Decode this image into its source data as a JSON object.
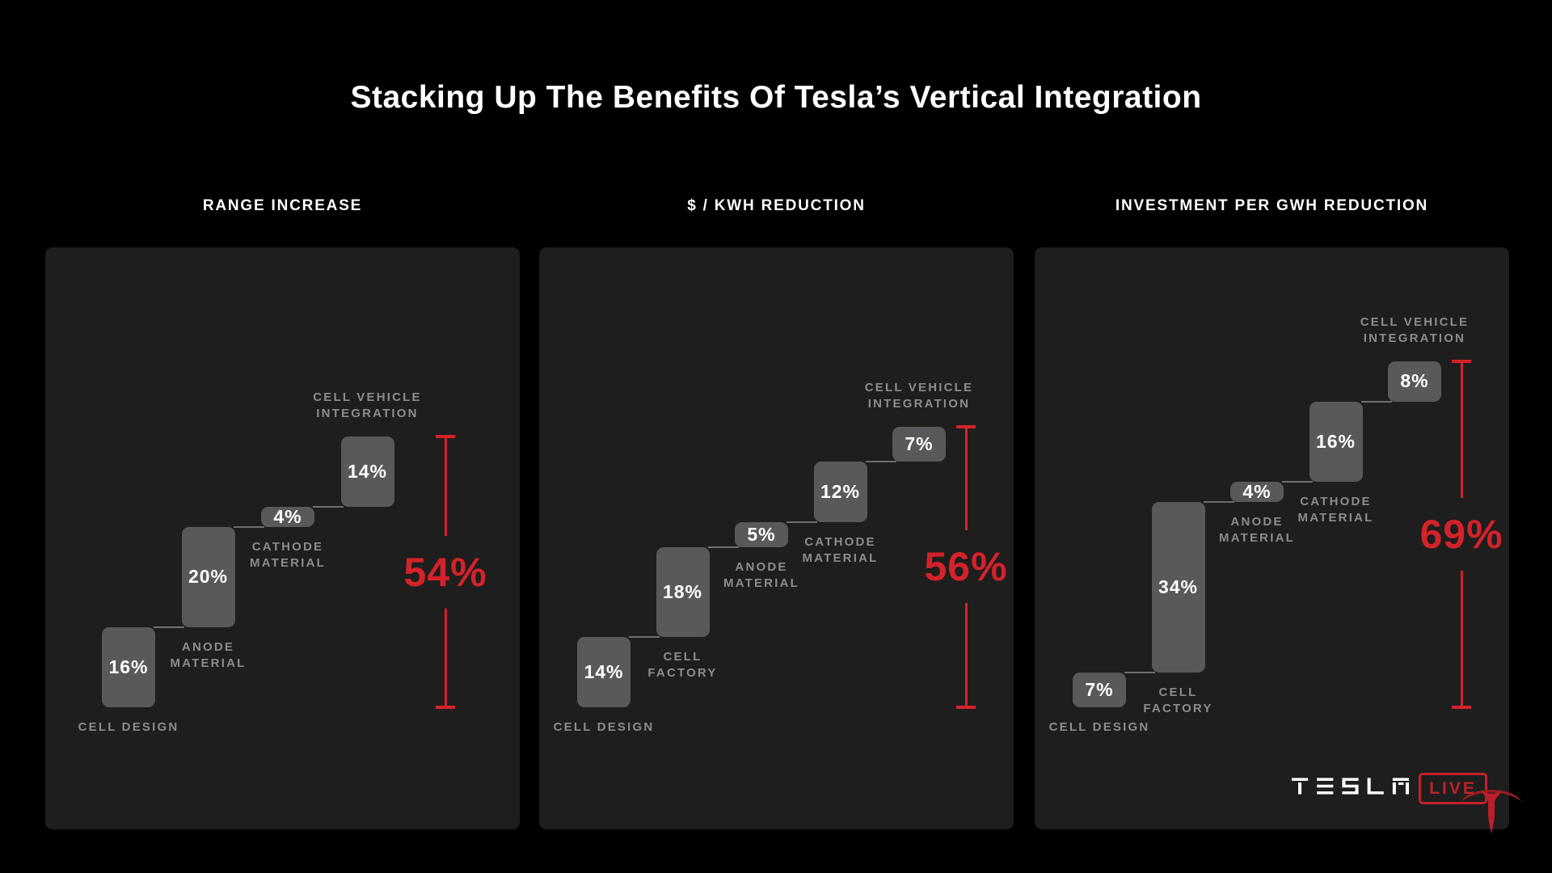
{
  "page": {
    "title": "Stacking Up The Benefits Of Tesla’s Vertical Integration"
  },
  "colors": {
    "background": "#000000",
    "panel_bg": "#1e1e1e",
    "bar_fill": "#59595c",
    "value_text": "#ffffff",
    "category_label": "#8c8c8c",
    "connector_line": "#6e6e6e",
    "accent_red": "#d4222a",
    "logo_red": "#c2212b",
    "wordmark_white": "#ffffff"
  },
  "branding": {
    "wordmark": "TESLA",
    "live_label": "LIVE"
  },
  "chart_data": [
    {
      "type": "bar",
      "subtype": "waterfall",
      "title": "RANGE INCREASE",
      "unit": "%",
      "grid": false,
      "legend": "none",
      "categories": [
        "CELL DESIGN",
        "ANODE MATERIAL",
        "CATHODE MATERIAL",
        "CELL VEHICLE INTEGRATION"
      ],
      "category_lines": [
        [
          "CELL DESIGN"
        ],
        [
          "ANODE",
          "MATERIAL"
        ],
        [
          "CATHODE",
          "MATERIAL"
        ],
        [
          "CELL VEHICLE",
          "INTEGRATION"
        ]
      ],
      "values": [
        16,
        20,
        4,
        14
      ],
      "value_labels": [
        "16%",
        "20%",
        "4%",
        "14%"
      ],
      "total": 54,
      "total_label": "54%"
    },
    {
      "type": "bar",
      "subtype": "waterfall",
      "title": "$ / KWH REDUCTION",
      "unit": "%",
      "grid": false,
      "legend": "none",
      "categories": [
        "CELL DESIGN",
        "CELL FACTORY",
        "ANODE MATERIAL",
        "CATHODE MATERIAL",
        "CELL VEHICLE INTEGRATION"
      ],
      "category_lines": [
        [
          "CELL DESIGN"
        ],
        [
          "CELL",
          "FACTORY"
        ],
        [
          "ANODE",
          "MATERIAL"
        ],
        [
          "CATHODE",
          "MATERIAL"
        ],
        [
          "CELL VEHICLE",
          "INTEGRATION"
        ]
      ],
      "values": [
        14,
        18,
        5,
        12,
        7
      ],
      "value_labels": [
        "14%",
        "18%",
        "5%",
        "12%",
        "7%"
      ],
      "total": 56,
      "total_label": "56%"
    },
    {
      "type": "bar",
      "subtype": "waterfall",
      "title": "INVESTMENT PER GWH REDUCTION",
      "unit": "%",
      "grid": false,
      "legend": "none",
      "categories": [
        "CELL DESIGN",
        "CELL FACTORY",
        "ANODE MATERIAL",
        "CATHODE MATERIAL",
        "CELL VEHICLE INTEGRATION"
      ],
      "category_lines": [
        [
          "CELL DESIGN"
        ],
        [
          "CELL",
          "FACTORY"
        ],
        [
          "ANODE",
          "MATERIAL"
        ],
        [
          "CATHODE",
          "MATERIAL"
        ],
        [
          "CELL VEHICLE",
          "INTEGRATION"
        ]
      ],
      "values": [
        7,
        34,
        4,
        16,
        8
      ],
      "value_labels": [
        "7%",
        "34%",
        "4%",
        "16%",
        "8%"
      ],
      "total": 69,
      "total_label": "69%"
    }
  ]
}
